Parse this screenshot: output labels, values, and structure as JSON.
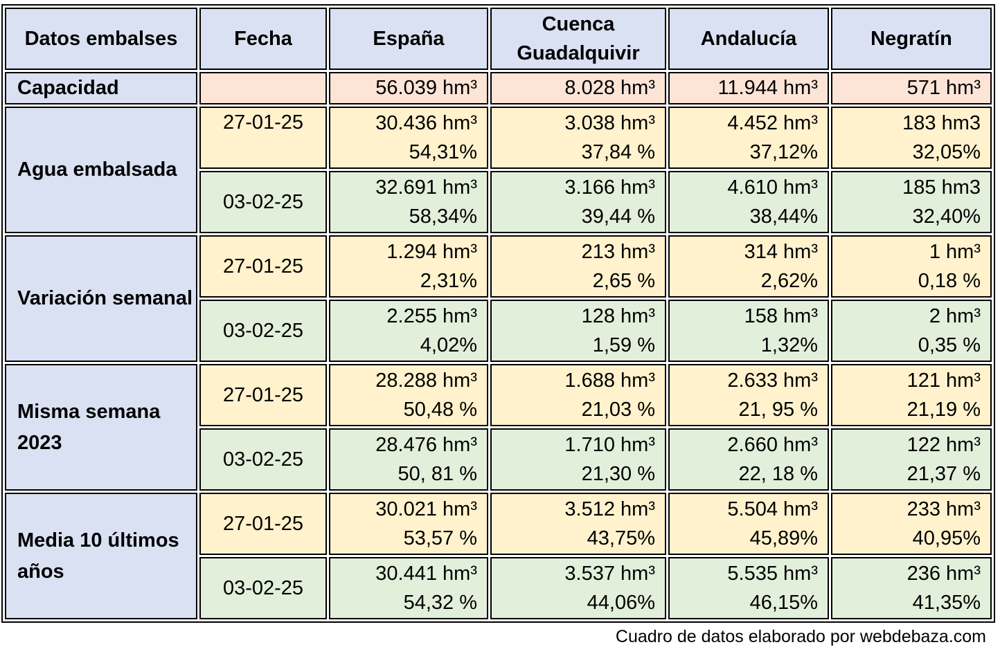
{
  "headers": [
    "Datos embalses",
    "Fecha",
    "España",
    "Cuenca Guadalquivir",
    "Andalucía",
    "Negratín"
  ],
  "capacity": {
    "label": "Capacidad",
    "date": "",
    "values": [
      "56.039 hm³",
      "8.028 hm³",
      "11.944 hm³",
      "571 hm³"
    ]
  },
  "groups": [
    {
      "label": "Agua embalsada",
      "rows": [
        {
          "date": "27-01-25",
          "cells": [
            [
              "30.436 hm³",
              "54,31%"
            ],
            [
              "3.038 hm³",
              "37,84 %"
            ],
            [
              "4.452 hm³",
              "37,12%"
            ],
            [
              "183 hm3",
              "32,05%"
            ]
          ]
        },
        {
          "date": "03-02-25",
          "cells": [
            [
              "32.691 hm³",
              "58,34%"
            ],
            [
              "3.166 hm³",
              "39,44 %"
            ],
            [
              "4.610 hm³",
              "38,44%"
            ],
            [
              "185 hm3",
              "32,40%"
            ]
          ]
        }
      ]
    },
    {
      "label": "Variación semanal",
      "rows": [
        {
          "date": "27-01-25",
          "cells": [
            [
              "1.294 hm³",
              "2,31%"
            ],
            [
              "213 hm³",
              "2,65 %"
            ],
            [
              "314 hm³",
              "2,62%"
            ],
            [
              "1 hm³",
              "0,18 %"
            ]
          ]
        },
        {
          "date": "03-02-25",
          "cells": [
            [
              "2.255 hm³",
              "4,02%"
            ],
            [
              "128 hm³",
              "1,59 %"
            ],
            [
              "158 hm³",
              "1,32%"
            ],
            [
              "2 hm³",
              "0,35 %"
            ]
          ]
        }
      ]
    },
    {
      "label": "Misma semana 2023",
      "rows": [
        {
          "date": "27-01-25",
          "cells": [
            [
              "28.288 hm³",
              "50,48 %"
            ],
            [
              "1.688 hm³",
              "21,03 %"
            ],
            [
              "2.633 hm³",
              "21, 95 %"
            ],
            [
              "121 hm³",
              "21,19 %"
            ]
          ]
        },
        {
          "date": "03-02-25",
          "cells": [
            [
              "28.476 hm³",
              "50, 81 %"
            ],
            [
              "1.710 hm³",
              "21,30 %"
            ],
            [
              "2.660 hm³",
              "22, 18 %"
            ],
            [
              "122 hm³",
              "21,37 %"
            ]
          ]
        }
      ]
    },
    {
      "label": "Media 10 últimos años",
      "rows": [
        {
          "date": "27-01-25",
          "cells": [
            [
              "30.021 hm³",
              "53,57 %"
            ],
            [
              "3.512 hm³",
              "43,75%"
            ],
            [
              "5.504 hm³",
              "45,89%"
            ],
            [
              "233 hm³",
              "40,95%"
            ]
          ]
        },
        {
          "date": "03-02-25",
          "cells": [
            [
              "30.441 hm³",
              "54,32 %"
            ],
            [
              "3.537 hm³",
              "44,06%"
            ],
            [
              "5.535 hm³",
              "46,15%"
            ],
            [
              "236 hm³",
              "41,35%"
            ]
          ]
        }
      ]
    }
  ],
  "colors": {
    "header": "#d9e1f2",
    "capacity": "#fce4d6",
    "week1": "#fff2cc",
    "week2": "#e2efda"
  },
  "footer": "Cuadro de datos elaborado por webdebaza.com"
}
